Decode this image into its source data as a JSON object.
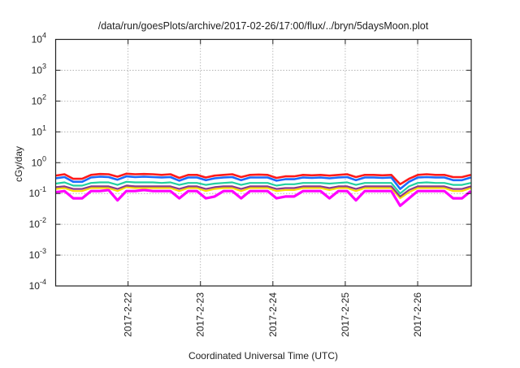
{
  "chart_data": {
    "type": "line",
    "title": "/data/run/goesPlots/archive/2017-02-26/17:00/flux/../bryn/5daysMoon.plot",
    "xlabel": "Coordinated Universal Time (UTC)",
    "ylabel": "cGy/day",
    "yscale": "log",
    "ylim": [
      0.0001,
      10000
    ],
    "y_ticks": [
      {
        "base": "10",
        "exp": "-4",
        "value": 0.0001
      },
      {
        "base": "10",
        "exp": "-3",
        "value": 0.001
      },
      {
        "base": "10",
        "exp": "-2",
        "value": 0.01
      },
      {
        "base": "10",
        "exp": "-1",
        "value": 0.1
      },
      {
        "base": "10",
        "exp": "0",
        "value": 1
      },
      {
        "base": "10",
        "exp": "1",
        "value": 10
      },
      {
        "base": "10",
        "exp": "2",
        "value": 100
      },
      {
        "base": "10",
        "exp": "3",
        "value": 1000
      },
      {
        "base": "10",
        "exp": "4",
        "value": 10000
      }
    ],
    "x_unit": "days since 2017-02-21 00:00 UTC",
    "xlim": [
      0,
      5.74
    ],
    "x_ticks": [
      {
        "label": "2017-2-22",
        "value": 1
      },
      {
        "label": "2017-2-23",
        "value": 2
      },
      {
        "label": "2017-2-24",
        "value": 3
      },
      {
        "label": "2017-2-25",
        "value": 4
      },
      {
        "label": "2017-2-26",
        "value": 5
      }
    ],
    "grid": true,
    "x_start": 0,
    "x_step": 0.122,
    "series": [
      {
        "name": "magenta",
        "color": "#ff00ff",
        "width": 3.2,
        "values": [
          0.11,
          0.12,
          0.07,
          0.07,
          0.12,
          0.12,
          0.13,
          0.06,
          0.12,
          0.12,
          0.13,
          0.12,
          0.12,
          0.12,
          0.07,
          0.12,
          0.12,
          0.07,
          0.08,
          0.12,
          0.12,
          0.07,
          0.12,
          0.12,
          0.12,
          0.07,
          0.08,
          0.08,
          0.12,
          0.12,
          0.12,
          0.07,
          0.12,
          0.12,
          0.06,
          0.12,
          0.12,
          0.12,
          0.12,
          0.04,
          0.07,
          0.12,
          0.12,
          0.12,
          0.12,
          0.07,
          0.07,
          0.12
        ]
      },
      {
        "name": "yellow",
        "color": "#ffe000",
        "width": 2.2,
        "values": [
          0.14,
          0.15,
          0.12,
          0.12,
          0.15,
          0.15,
          0.15,
          0.12,
          0.16,
          0.15,
          0.15,
          0.15,
          0.15,
          0.15,
          0.12,
          0.15,
          0.15,
          0.12,
          0.14,
          0.15,
          0.15,
          0.12,
          0.15,
          0.15,
          0.15,
          0.12,
          0.13,
          0.13,
          0.15,
          0.15,
          0.15,
          0.13,
          0.15,
          0.15,
          0.12,
          0.15,
          0.15,
          0.15,
          0.15,
          0.07,
          0.11,
          0.15,
          0.15,
          0.15,
          0.15,
          0.12,
          0.12,
          0.15
        ]
      },
      {
        "name": "purple",
        "color": "#8b3a8b",
        "width": 2.2,
        "values": [
          0.16,
          0.17,
          0.14,
          0.14,
          0.17,
          0.17,
          0.17,
          0.14,
          0.18,
          0.17,
          0.17,
          0.17,
          0.17,
          0.17,
          0.14,
          0.17,
          0.17,
          0.14,
          0.16,
          0.17,
          0.17,
          0.14,
          0.17,
          0.17,
          0.17,
          0.14,
          0.15,
          0.15,
          0.17,
          0.17,
          0.17,
          0.15,
          0.17,
          0.17,
          0.14,
          0.17,
          0.17,
          0.17,
          0.17,
          0.08,
          0.13,
          0.17,
          0.17,
          0.17,
          0.17,
          0.14,
          0.14,
          0.17
        ]
      },
      {
        "name": "teal",
        "color": "#20d0a0",
        "width": 2.2,
        "values": [
          0.21,
          0.23,
          0.18,
          0.18,
          0.22,
          0.23,
          0.23,
          0.19,
          0.24,
          0.23,
          0.23,
          0.23,
          0.22,
          0.23,
          0.19,
          0.22,
          0.22,
          0.19,
          0.21,
          0.22,
          0.23,
          0.19,
          0.22,
          0.22,
          0.22,
          0.18,
          0.2,
          0.2,
          0.22,
          0.22,
          0.22,
          0.21,
          0.22,
          0.23,
          0.19,
          0.22,
          0.22,
          0.22,
          0.22,
          0.1,
          0.17,
          0.22,
          0.23,
          0.22,
          0.22,
          0.19,
          0.19,
          0.22
        ]
      },
      {
        "name": "red",
        "color": "#ff1a1a",
        "width": 2.6,
        "values": [
          0.38,
          0.42,
          0.3,
          0.3,
          0.4,
          0.43,
          0.42,
          0.35,
          0.44,
          0.42,
          0.43,
          0.42,
          0.4,
          0.42,
          0.32,
          0.4,
          0.4,
          0.33,
          0.38,
          0.4,
          0.42,
          0.34,
          0.4,
          0.41,
          0.4,
          0.32,
          0.36,
          0.36,
          0.4,
          0.39,
          0.4,
          0.38,
          0.4,
          0.42,
          0.34,
          0.4,
          0.4,
          0.39,
          0.4,
          0.2,
          0.3,
          0.4,
          0.42,
          0.4,
          0.4,
          0.34,
          0.34,
          0.4
        ]
      },
      {
        "name": "blue",
        "color": "#1a6cff",
        "width": 2.6,
        "values": [
          0.31,
          0.34,
          0.24,
          0.24,
          0.33,
          0.35,
          0.34,
          0.28,
          0.36,
          0.34,
          0.35,
          0.34,
          0.33,
          0.34,
          0.26,
          0.33,
          0.33,
          0.27,
          0.31,
          0.33,
          0.34,
          0.27,
          0.33,
          0.33,
          0.33,
          0.26,
          0.29,
          0.29,
          0.33,
          0.32,
          0.33,
          0.31,
          0.33,
          0.34,
          0.27,
          0.33,
          0.33,
          0.32,
          0.33,
          0.14,
          0.24,
          0.33,
          0.34,
          0.33,
          0.33,
          0.27,
          0.27,
          0.33
        ]
      }
    ]
  }
}
